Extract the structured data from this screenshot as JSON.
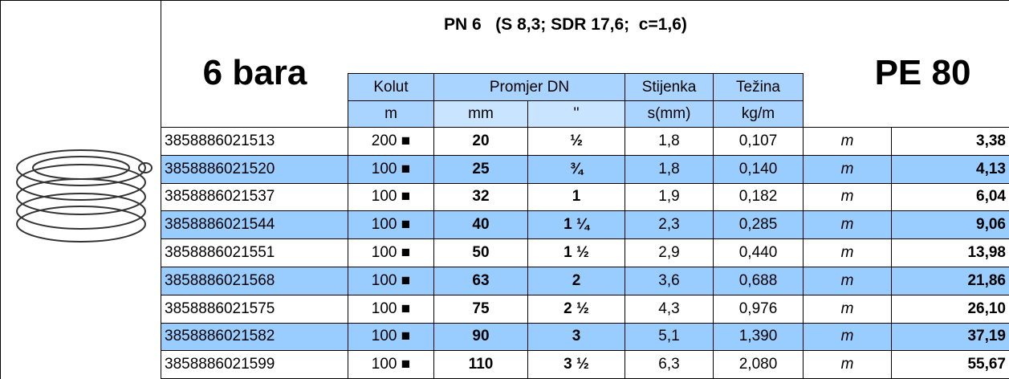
{
  "header": {
    "title": "PN 6   (S 8,3; SDR 17,6;  c=1,6)",
    "pressure": "6 bara",
    "material": "PE 80"
  },
  "table": {
    "columns": [
      "Kolut",
      "Promjer DN",
      "Stijenka",
      "Težina"
    ],
    "units": [
      "m",
      "mm",
      "''",
      "s(mm)",
      "kg/m"
    ],
    "rows": [
      [
        "3858886021513",
        "200 ■",
        "20",
        "½",
        "1,8",
        "0,107",
        "m",
        "3,38"
      ],
      [
        "3858886021520",
        "100 ■",
        "25",
        "¾",
        "1,8",
        "0,140",
        "m",
        "4,13"
      ],
      [
        "3858886021537",
        "100 ■",
        "32",
        "1",
        "1,9",
        "0,182",
        "m",
        "6,04"
      ],
      [
        "3858886021544",
        "100 ■",
        "40",
        "1 ¼",
        "2,3",
        "0,285",
        "m",
        "9,06"
      ],
      [
        "3858886021551",
        "100 ■",
        "50",
        "1 ½",
        "2,9",
        "0,440",
        "m",
        "13,98"
      ],
      [
        "3858886021568",
        "100 ■",
        "63",
        "2",
        "3,6",
        "0,688",
        "m",
        "21,86"
      ],
      [
        "3858886021575",
        "100 ■",
        "75",
        "2 ½",
        "4,3",
        "0,976",
        "m",
        "26,10"
      ],
      [
        "3858886021582",
        "100 ■",
        "90",
        "3",
        "5,1",
        "1,390",
        "m",
        "37,19"
      ],
      [
        "3858886021599",
        "100 ■",
        "110",
        "3 ½",
        "6,3",
        "2,080",
        "m",
        "55,67"
      ]
    ]
  }
}
